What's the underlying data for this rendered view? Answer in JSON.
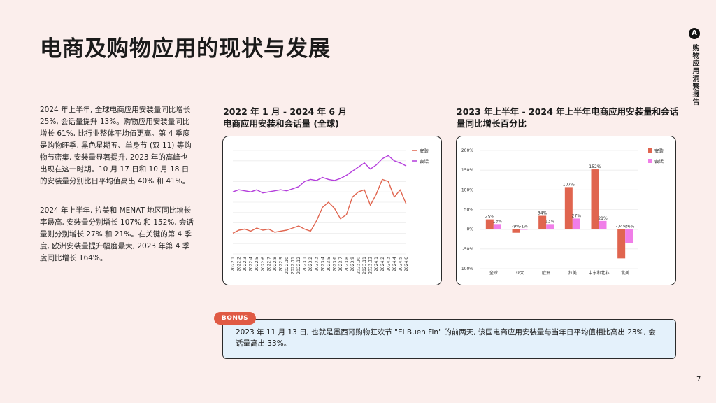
{
  "page": {
    "title": "电商及购物应用的现状与发展",
    "brand_text": "购物应用洞察报告",
    "brand_logo_glyph": "A",
    "page_number": "7",
    "paragraph1": "2024 年上半年, 全球电商应用安装量同比增长 25%, 会话量提升 13%。购物应用安装量同比增长 61%, 比行业整体平均值更高。第 4 季度是购物旺季, 黑色星期五、单身节 (双 11) 等购物节密集, 安装量显著提升, 2023 年的高峰也出现在这一时期。10 月 17 日和 10 月 18 日的安装量分别比日平均值高出 40% 和 41%。",
    "paragraph2": "2024 年上半年, 拉美和 MENAT 地区同比增长率最高, 安装量分别增长 107% 和 152%, 会话量则分别增长 27% 和 21%。在关键的第 4 季度, 欧洲安装量提升幅度最大, 2023 年第 4 季度同比增长 164%。",
    "bonus_label": "BONUS",
    "bonus_text": "2023 年 11 月 13 日, 也就是墨西哥购物狂欢节 \"El Buen Fin\" 的前两天, 该国电商应用安装量与当年日平均值相比高出 23%, 会话量高出 33%。"
  },
  "chart_data": [
    {
      "type": "line",
      "title_line1": "2022 年 1 月 - 2024 年 6 月",
      "title_line2": "电商应用安装和会话量 (全球)",
      "x": [
        "2022.1",
        "2022.2",
        "2022.3",
        "2022.4",
        "2022.5",
        "2022.6",
        "2022.7",
        "2022.8",
        "2022.9",
        "2022.10",
        "2022.11",
        "2022.12",
        "2023.1",
        "2023.2",
        "2023.3",
        "2023.4",
        "2023.5",
        "2023.6",
        "2023.7",
        "2023.8",
        "2023.9",
        "2023.10",
        "2023.11",
        "2023.12",
        "2024.1",
        "2024.2",
        "2024.3",
        "2024.4",
        "2024.5",
        "2024.6"
      ],
      "series": [
        {
          "name": "安装",
          "color": "#e0654f",
          "values": [
            20,
            23,
            24,
            22,
            25,
            23,
            24,
            21,
            22,
            23,
            25,
            27,
            24,
            22,
            32,
            45,
            50,
            44,
            34,
            38,
            55,
            60,
            62,
            47,
            58,
            72,
            70,
            55,
            62,
            48
          ]
        },
        {
          "name": "会话",
          "color": "#b43ddc",
          "values": [
            60,
            62,
            61,
            60,
            62,
            59,
            60,
            61,
            62,
            61,
            63,
            65,
            70,
            72,
            71,
            74,
            72,
            71,
            73,
            76,
            80,
            84,
            88,
            82,
            86,
            92,
            95,
            90,
            88,
            85
          ]
        }
      ],
      "ylim": [
        0,
        100
      ],
      "legend": "top-right"
    },
    {
      "type": "bar",
      "title_line1": "2023 年上半年 - 2024 年上半年电商应用安装量和会话",
      "title_line2": "量同比增长百分比",
      "categories": [
        "全球",
        "亚太",
        "欧洲",
        "拉美",
        "中东和北非",
        "北美"
      ],
      "series": [
        {
          "name": "安装",
          "color": "#e0654f",
          "values": [
            25,
            -9,
            34,
            107,
            152,
            -74
          ]
        },
        {
          "name": "会话",
          "color": "#f07ee8",
          "values": [
            13,
            -1,
            13,
            27,
            21,
            -36
          ]
        }
      ],
      "data_labels": [
        [
          "25%",
          "13%"
        ],
        [
          "-9%",
          "-1%"
        ],
        [
          "34%",
          "13%"
        ],
        [
          "107%",
          "27%"
        ],
        [
          "152%",
          "21%"
        ],
        [
          "-74%",
          "-36%"
        ]
      ],
      "yticks": [
        200,
        150,
        100,
        50,
        0,
        -50,
        -100
      ],
      "ytick_labels": [
        "200%",
        "150%",
        "100%",
        "50%",
        "0%",
        "-50%",
        "-100%"
      ],
      "ylim": [
        -100,
        200
      ],
      "legend": "top-right"
    }
  ]
}
